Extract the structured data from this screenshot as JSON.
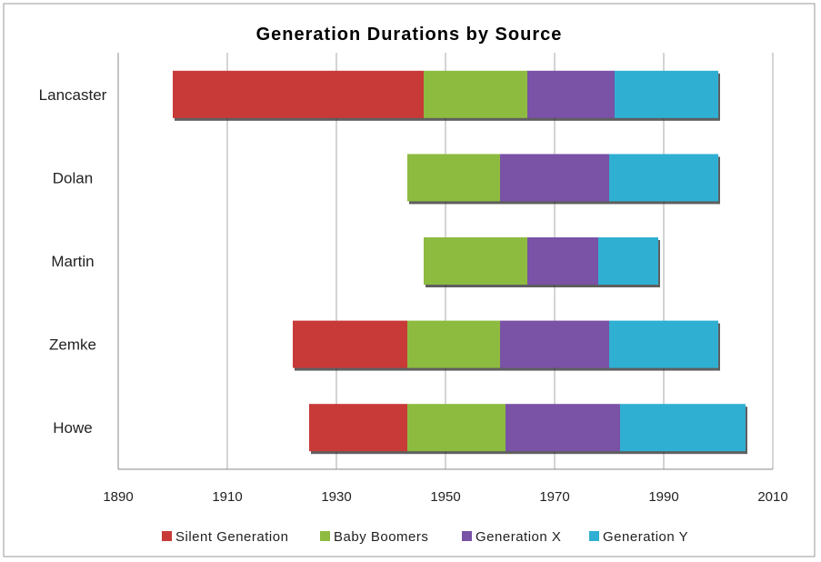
{
  "chart_data": {
    "type": "bar",
    "orientation": "horizontal-floating-stacked",
    "title": "Generation Durations by Source",
    "xlabel": "",
    "ylabel": "",
    "xlim": [
      1890,
      2010
    ],
    "xticks": [
      1890,
      1910,
      1930,
      1950,
      1970,
      1990,
      2010
    ],
    "grid": true,
    "legend_position": "bottom",
    "categories": [
      "Lancaster",
      "Dolan",
      "Martin",
      "Zemke",
      "Howe"
    ],
    "series": [
      {
        "name": "Silent Generation",
        "color": "#c83a38",
        "ranges": [
          [
            1900,
            1946
          ],
          null,
          null,
          [
            1922,
            1943
          ],
          [
            1925,
            1943
          ]
        ]
      },
      {
        "name": "Baby Boomers",
        "color": "#8dbb40",
        "ranges": [
          [
            1946,
            1965
          ],
          [
            1943,
            1960
          ],
          [
            1946,
            1965
          ],
          [
            1943,
            1960
          ],
          [
            1943,
            1961
          ]
        ]
      },
      {
        "name": "Generation X",
        "color": "#7a52a6",
        "ranges": [
          [
            1965,
            1981
          ],
          [
            1960,
            1980
          ],
          [
            1965,
            1978
          ],
          [
            1960,
            1980
          ],
          [
            1961,
            1982
          ]
        ]
      },
      {
        "name": "Generation Y",
        "color": "#2fb0d2",
        "ranges": [
          [
            1981,
            2000
          ],
          [
            1980,
            2000
          ],
          [
            1978,
            1989
          ],
          [
            1980,
            2000
          ],
          [
            1982,
            2005
          ]
        ]
      }
    ]
  }
}
